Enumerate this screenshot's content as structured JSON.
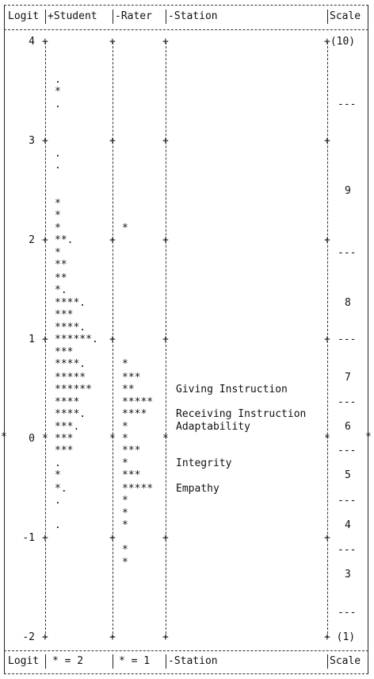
{
  "chart_data": {
    "type": "wright-map",
    "header": [
      "Logit",
      "+Student",
      "-Rater",
      "-Station",
      "Scale"
    ],
    "footer": [
      "Logit",
      "* = 2",
      "* = 1",
      "-Station",
      "Scale"
    ],
    "logit_ticks": [
      "4",
      "3",
      "2",
      "1",
      "0",
      "-1",
      "-2"
    ],
    "ylim": [
      -2,
      4
    ],
    "student_rows": [
      {
        "logit": 3.62,
        "s": "."
      },
      {
        "logit": 3.5,
        "s": "*"
      },
      {
        "logit": 3.37,
        "s": "."
      },
      {
        "logit": 2.87,
        "s": "."
      },
      {
        "logit": 2.75,
        "s": "."
      },
      {
        "logit": 2.37,
        "s": "*"
      },
      {
        "logit": 2.25,
        "s": "*"
      },
      {
        "logit": 2.12,
        "s": "*"
      },
      {
        "logit": 2.0,
        "s": "**."
      },
      {
        "logit": 1.87,
        "s": "*"
      },
      {
        "logit": 1.75,
        "s": "**"
      },
      {
        "logit": 1.62,
        "s": "**"
      },
      {
        "logit": 1.5,
        "s": "*."
      },
      {
        "logit": 1.37,
        "s": "****."
      },
      {
        "logit": 1.25,
        "s": "***"
      },
      {
        "logit": 1.12,
        "s": "****."
      },
      {
        "logit": 1.0,
        "s": "******."
      },
      {
        "logit": 0.87,
        "s": "***"
      },
      {
        "logit": 0.75,
        "s": "****."
      },
      {
        "logit": 0.62,
        "s": "*****"
      },
      {
        "logit": 0.5,
        "s": "******"
      },
      {
        "logit": 0.37,
        "s": "****"
      },
      {
        "logit": 0.25,
        "s": "****."
      },
      {
        "logit": 0.12,
        "s": "***."
      },
      {
        "logit": 0.0,
        "s": "***"
      },
      {
        "logit": -0.12,
        "s": "***"
      },
      {
        "logit": -0.25,
        "s": "."
      },
      {
        "logit": -0.37,
        "s": "*"
      },
      {
        "logit": -0.5,
        "s": "*."
      },
      {
        "logit": -0.62,
        "s": "."
      },
      {
        "logit": -0.87,
        "s": "."
      }
    ],
    "rater_rows": [
      {
        "logit": 2.12,
        "s": "*"
      },
      {
        "logit": 0.75,
        "s": "*"
      },
      {
        "logit": 0.62,
        "s": "***"
      },
      {
        "logit": 0.5,
        "s": "**"
      },
      {
        "logit": 0.37,
        "s": "*****"
      },
      {
        "logit": 0.25,
        "s": "****"
      },
      {
        "logit": 0.12,
        "s": "*"
      },
      {
        "logit": 0.0,
        "s": "*"
      },
      {
        "logit": -0.12,
        "s": "***"
      },
      {
        "logit": -0.25,
        "s": "*"
      },
      {
        "logit": -0.37,
        "s": "***"
      },
      {
        "logit": -0.5,
        "s": "*****"
      },
      {
        "logit": -0.62,
        "s": "*"
      },
      {
        "logit": -0.75,
        "s": "*"
      },
      {
        "logit": -0.87,
        "s": "*"
      },
      {
        "logit": -1.12,
        "s": "*"
      },
      {
        "logit": -1.25,
        "s": "*"
      }
    ],
    "stations": [
      {
        "logit": 0.5,
        "label": "Giving Instruction"
      },
      {
        "logit": 0.25,
        "label": "Receiving Instruction"
      },
      {
        "logit": 0.12,
        "label": "Adaptability"
      },
      {
        "logit": -0.25,
        "label": "Integrity"
      },
      {
        "logit": -0.5,
        "label": "Empathy"
      }
    ],
    "scale_labels": [
      {
        "logit": 4.0,
        "s": "+(10)"
      },
      {
        "logit": 3.37,
        "s": "---"
      },
      {
        "logit": 2.5,
        "s": "9"
      },
      {
        "logit": 1.87,
        "s": "---"
      },
      {
        "logit": 1.37,
        "s": "8"
      },
      {
        "logit": 1.0,
        "s": "---"
      },
      {
        "logit": 0.62,
        "s": "7"
      },
      {
        "logit": 0.37,
        "s": "---"
      },
      {
        "logit": 0.12,
        "s": "6"
      },
      {
        "logit": -0.12,
        "s": "---"
      },
      {
        "logit": -0.37,
        "s": "5"
      },
      {
        "logit": -0.62,
        "s": "---"
      },
      {
        "logit": -0.87,
        "s": "4"
      },
      {
        "logit": -1.12,
        "s": "---"
      },
      {
        "logit": -1.37,
        "s": "3"
      },
      {
        "logit": -1.75,
        "s": "---"
      },
      {
        "logit": -2.0,
        "s": "+ (1)"
      }
    ]
  }
}
